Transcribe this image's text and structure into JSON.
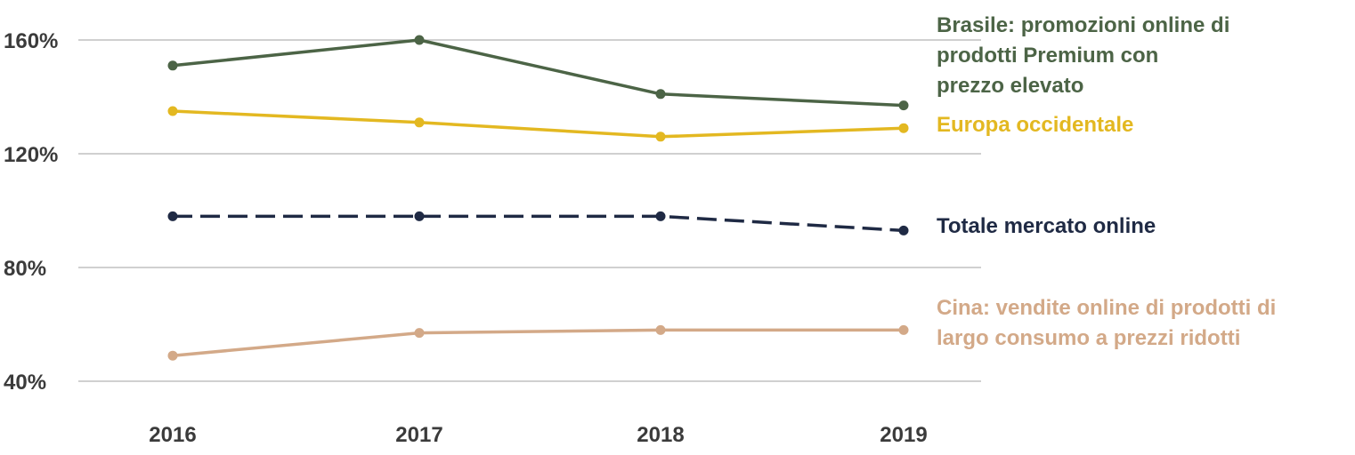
{
  "chart_data": {
    "type": "line",
    "title": "",
    "xlabel": "",
    "ylabel": "",
    "x": [
      "2016",
      "2017",
      "2018",
      "2019"
    ],
    "y_unit": "%",
    "ylim": [
      40,
      160
    ],
    "yticks": [
      40,
      80,
      120,
      160
    ],
    "yticks_labels": [
      "40%",
      "80%",
      "120%",
      "160%"
    ],
    "grid": true,
    "legend": "right-of-plot direct labels",
    "series": [
      {
        "id": "brasile",
        "name": "Brasile: promozioni online di prodotti Premium con prezzo elevato",
        "label_lines": [
          "Brasile: promozioni online di",
          "prodotti Premium con",
          "prezzo elevato"
        ],
        "values": [
          151,
          160,
          141,
          137
        ],
        "color": "#4c6446",
        "dashed": false
      },
      {
        "id": "europa",
        "name": "Europa occidentale",
        "label_lines": [
          "Europa occidentale"
        ],
        "values": [
          135,
          131,
          126,
          129
        ],
        "color": "#e3b821",
        "dashed": false
      },
      {
        "id": "totale",
        "name": "Totale mercato online",
        "label_lines": [
          "Totale mercato online"
        ],
        "values": [
          98,
          98,
          98,
          93
        ],
        "color": "#1f2a44",
        "dashed": true
      },
      {
        "id": "cina",
        "name": "Cina: vendite online di prodotti di largo consumo a prezzi ridotti",
        "label_lines": [
          "Cina: vendite online di prodotti di",
          "largo consumo a prezzi ridotti"
        ],
        "values": [
          49,
          57,
          58,
          58
        ],
        "color": "#d3a988",
        "dashed": false
      }
    ]
  }
}
